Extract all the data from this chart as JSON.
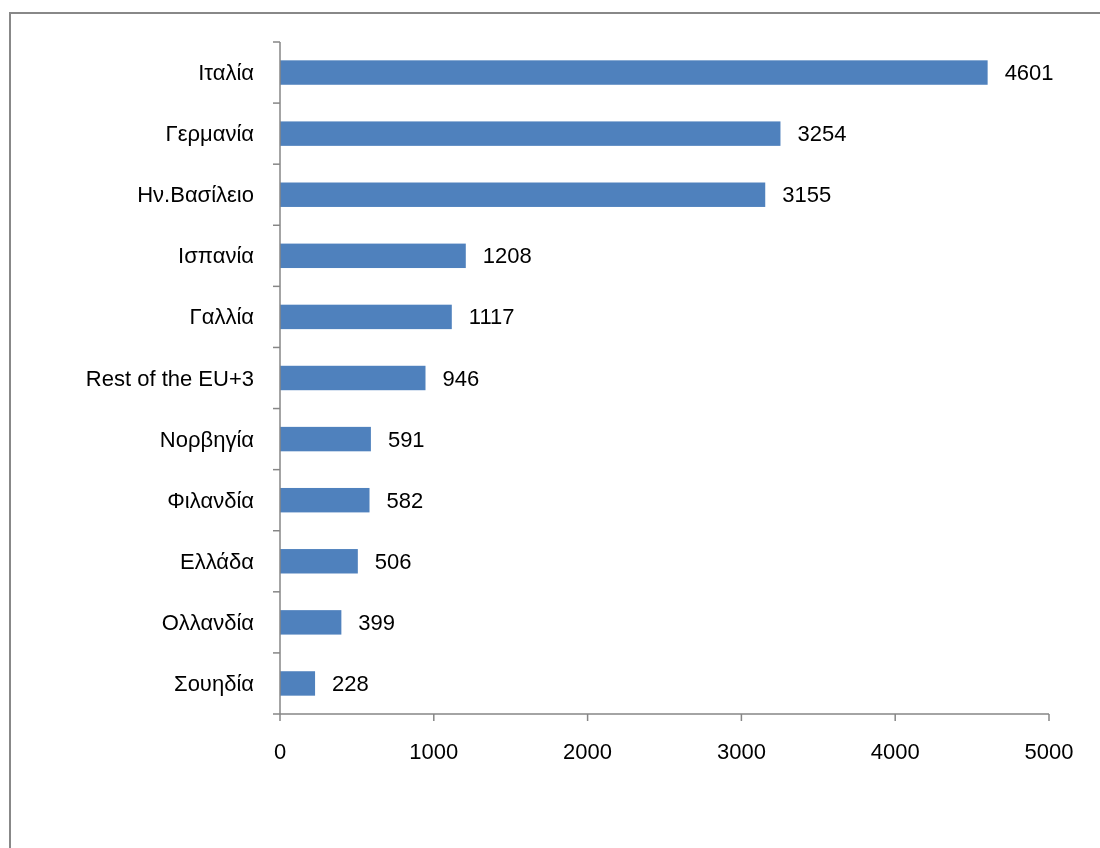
{
  "chart_data": {
    "type": "bar",
    "orientation": "horizontal",
    "categories": [
      "Ιταλία",
      "Γερμανία",
      "Ην.Βασίλειο",
      "Ισπανία",
      "Γαλλία",
      "Rest of the EU+3",
      "Νορβηγία",
      "Φιλανδία",
      "Ελλάδα",
      "Ολλανδία",
      "Σουηδία"
    ],
    "values": [
      4601,
      3254,
      3155,
      1208,
      1117,
      946,
      591,
      582,
      506,
      399,
      228
    ],
    "color": "#4f81bd",
    "xlim": [
      0,
      5000
    ],
    "xticks": [
      0,
      1000,
      2000,
      3000,
      4000,
      5000
    ],
    "data_labels": true
  }
}
